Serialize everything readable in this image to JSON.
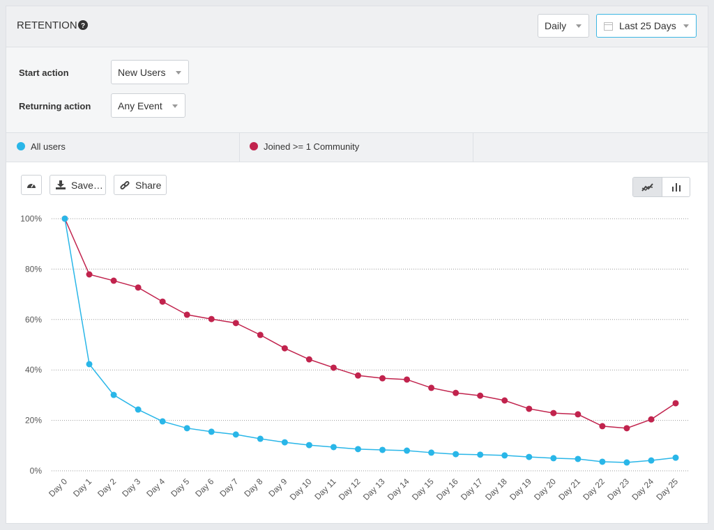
{
  "header": {
    "title": "RETENTION",
    "interval": "Daily",
    "range": "Last 25 Days"
  },
  "controls": {
    "rows": [
      {
        "label": "Start action",
        "value": "New Users"
      },
      {
        "label": "Returning action",
        "value": "Any Event"
      }
    ]
  },
  "toolbar": {
    "save": "Save…",
    "share": "Share"
  },
  "chart_data": {
    "type": "line",
    "categories": [
      "Day 0",
      "Day 1",
      "Day 2",
      "Day 3",
      "Day 4",
      "Day 5",
      "Day 6",
      "Day 7",
      "Day 8",
      "Day 9",
      "Day 10",
      "Day 11",
      "Day 12",
      "Day 13",
      "Day 14",
      "Day 15",
      "Day 16",
      "Day 17",
      "Day 18",
      "Day 19",
      "Day 20",
      "Day 21",
      "Day 22",
      "Day 23",
      "Day 24",
      "Day 25"
    ],
    "series": [
      {
        "name": "All users",
        "color": "#29b6e8",
        "values": [
          100,
          42.3,
          30.1,
          24.3,
          19.6,
          16.9,
          15.5,
          14.4,
          12.7,
          11.3,
          10.2,
          9.4,
          8.6,
          8.3,
          8.0,
          7.2,
          6.6,
          6.4,
          6.1,
          5.5,
          5.0,
          4.7,
          3.6,
          3.3,
          4.1,
          5.2
        ]
      },
      {
        "name": "Joined >= 1 Community",
        "color": "#c1234d",
        "values": [
          100,
          77.9,
          75.4,
          72.7,
          67.1,
          61.9,
          60.2,
          58.6,
          53.9,
          48.6,
          44.2,
          40.9,
          37.8,
          36.7,
          36.2,
          32.9,
          30.9,
          29.8,
          27.9,
          24.6,
          22.9,
          22.4,
          17.7,
          16.9,
          20.4,
          26.8
        ]
      }
    ],
    "ylim": [
      0,
      100
    ],
    "yticks": [
      {
        "value": 0,
        "label": "0%"
      },
      {
        "value": 20,
        "label": "20%"
      },
      {
        "value": 40,
        "label": "40%"
      },
      {
        "value": 60,
        "label": "60%"
      },
      {
        "value": 80,
        "label": "80%"
      },
      {
        "value": 100,
        "label": "100%"
      }
    ],
    "grid": true
  }
}
